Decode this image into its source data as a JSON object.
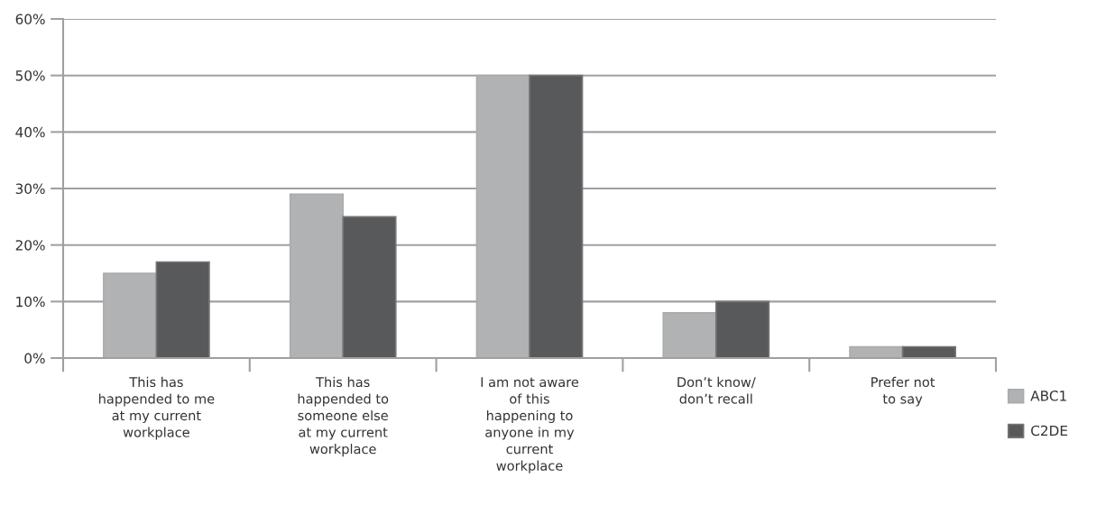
{
  "chart_data": {
    "type": "bar",
    "categories": [
      "This has\nhappended to me\nat my current\nworkplace",
      "This has\nhappended to\nsomeone else\nat my current\nworkplace",
      "I am not aware\nof this\nhappening to\nanyone in my\ncurrent\nworkplace",
      "Don’t know/\ndon’t recall",
      "Prefer not\nto say"
    ],
    "series": [
      {
        "name": "ABC1",
        "color": "#b1b2b4",
        "values": [
          15,
          29,
          50,
          8,
          2
        ]
      },
      {
        "name": "C2DE",
        "color": "#58595b",
        "values": [
          17,
          25,
          50,
          10,
          2
        ]
      }
    ],
    "ylim": [
      0,
      60
    ],
    "yticks": [
      {
        "value": 0,
        "label": "0%"
      },
      {
        "value": 10,
        "label": "10%"
      },
      {
        "value": 20,
        "label": "20%"
      },
      {
        "value": 30,
        "label": "30%"
      },
      {
        "value": 40,
        "label": "40%"
      },
      {
        "value": 50,
        "label": "50%"
      },
      {
        "value": 60,
        "label": "60%"
      }
    ],
    "grid": "y",
    "legend": "bottom right"
  }
}
